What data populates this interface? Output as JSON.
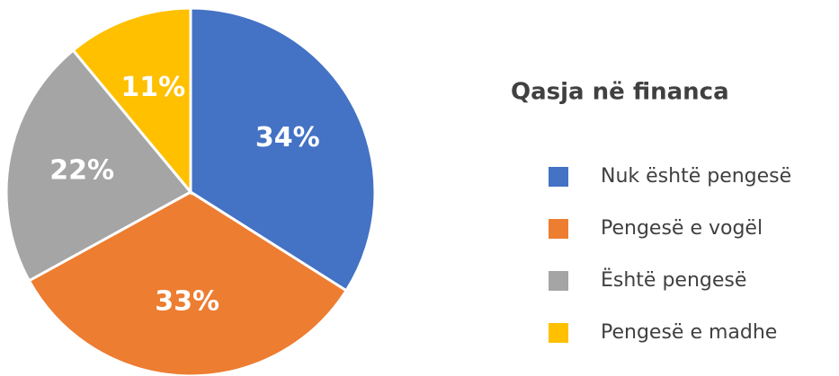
{
  "chart_data": {
    "type": "pie",
    "title": "Qasja në financa",
    "categories": [
      "Nuk është pengesë",
      "Pengesë e vogël",
      "Është pengesë",
      "Pengesë e madhe"
    ],
    "values": [
      34,
      33,
      22,
      11
    ],
    "value_labels": [
      "34%",
      "33%",
      "22%",
      "11%"
    ],
    "colors": [
      "#4472c4",
      "#ed7d31",
      "#a5a5a5",
      "#ffc000"
    ]
  }
}
